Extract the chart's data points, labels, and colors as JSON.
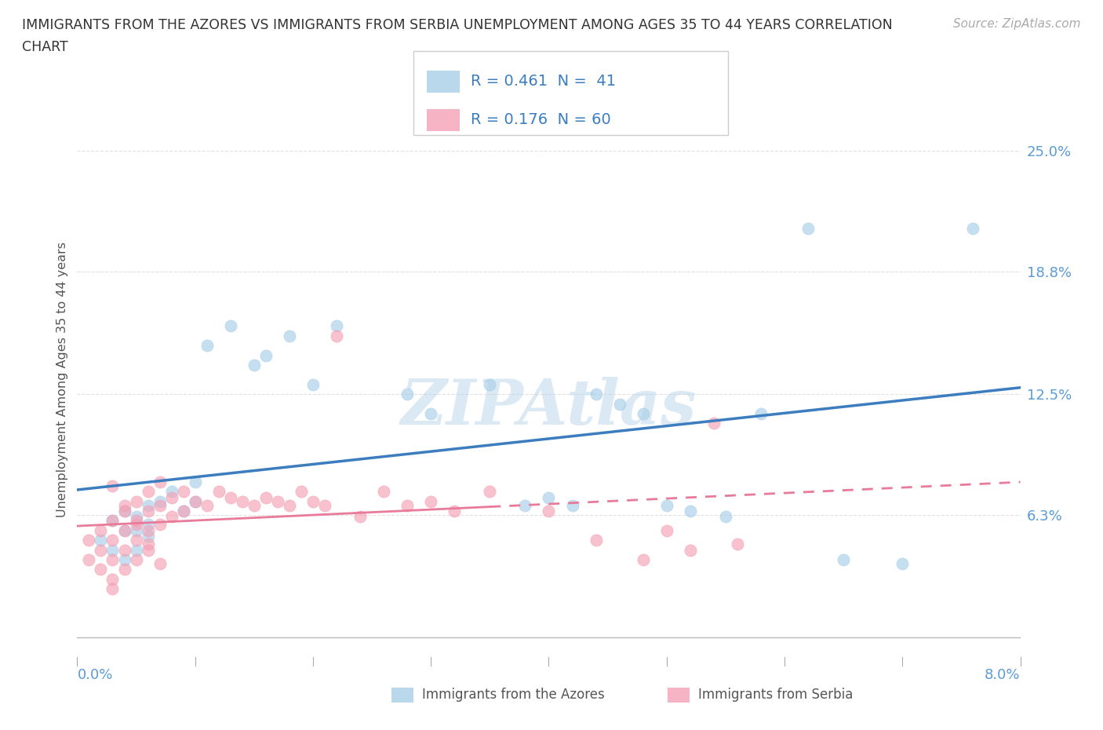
{
  "title_line1": "IMMIGRANTS FROM THE AZORES VS IMMIGRANTS FROM SERBIA UNEMPLOYMENT AMONG AGES 35 TO 44 YEARS CORRELATION",
  "title_line2": "CHART",
  "source": "Source: ZipAtlas.com",
  "xlim": [
    0.0,
    0.08
  ],
  "ylim": [
    -0.01,
    0.275
  ],
  "yticks": [
    0.0,
    0.063,
    0.125,
    0.188,
    0.25
  ],
  "ytick_labels": [
    "",
    "6.3%",
    "12.5%",
    "18.8%",
    "25.0%"
  ],
  "xtick_left_label": "0.0%",
  "xtick_right_label": "8.0%",
  "r_azores": 0.461,
  "n_azores": 41,
  "r_serbia": 0.176,
  "n_serbia": 60,
  "color_azores": "#a8cfe8",
  "color_serbia": "#f4a0b5",
  "color_azores_line": "#3b7dbf",
  "color_serbia_line": "#e87a9a",
  "legend_label_azores": "Immigrants from the Azores",
  "legend_label_serbia": "Immigrants from Serbia",
  "legend_r_azores": "R = 0.461  N =  41",
  "legend_r_serbia": "R = 0.176  N = 60",
  "watermark": "ZIPAtlas",
  "ylabel": "Unemployment Among Ages 35 to 44 years",
  "background_color": "#ffffff",
  "grid_color": "#e0e0e0",
  "title_fontsize": 12.5,
  "tick_label_fontsize": 13,
  "source_fontsize": 11,
  "azores_x": [
    0.002,
    0.003,
    0.003,
    0.004,
    0.004,
    0.004,
    0.005,
    0.005,
    0.005,
    0.006,
    0.006,
    0.006,
    0.007,
    0.008,
    0.009,
    0.01,
    0.01,
    0.011,
    0.013,
    0.015,
    0.016,
    0.018,
    0.02,
    0.022,
    0.028,
    0.03,
    0.035,
    0.038,
    0.04,
    0.042,
    0.044,
    0.046,
    0.048,
    0.05,
    0.052,
    0.055,
    0.058,
    0.062,
    0.065,
    0.07,
    0.076
  ],
  "azores_y": [
    0.05,
    0.06,
    0.045,
    0.055,
    0.065,
    0.04,
    0.062,
    0.055,
    0.045,
    0.068,
    0.058,
    0.052,
    0.07,
    0.075,
    0.065,
    0.08,
    0.07,
    0.15,
    0.16,
    0.14,
    0.145,
    0.155,
    0.13,
    0.16,
    0.125,
    0.115,
    0.13,
    0.068,
    0.072,
    0.068,
    0.125,
    0.12,
    0.115,
    0.068,
    0.065,
    0.062,
    0.115,
    0.21,
    0.04,
    0.038,
    0.21
  ],
  "serbia_x": [
    0.001,
    0.001,
    0.002,
    0.002,
    0.002,
    0.003,
    0.003,
    0.003,
    0.003,
    0.003,
    0.004,
    0.004,
    0.004,
    0.004,
    0.005,
    0.005,
    0.005,
    0.005,
    0.006,
    0.006,
    0.006,
    0.006,
    0.007,
    0.007,
    0.007,
    0.008,
    0.008,
    0.009,
    0.009,
    0.01,
    0.011,
    0.012,
    0.013,
    0.014,
    0.015,
    0.016,
    0.017,
    0.018,
    0.019,
    0.02,
    0.021,
    0.022,
    0.024,
    0.026,
    0.028,
    0.03,
    0.032,
    0.035,
    0.04,
    0.044,
    0.048,
    0.05,
    0.052,
    0.054,
    0.056,
    0.003,
    0.004,
    0.005,
    0.006,
    0.007
  ],
  "serbia_y": [
    0.05,
    0.04,
    0.055,
    0.045,
    0.035,
    0.06,
    0.05,
    0.04,
    0.03,
    0.025,
    0.065,
    0.055,
    0.045,
    0.035,
    0.07,
    0.06,
    0.05,
    0.04,
    0.075,
    0.065,
    0.055,
    0.045,
    0.08,
    0.068,
    0.058,
    0.072,
    0.062,
    0.075,
    0.065,
    0.07,
    0.068,
    0.075,
    0.072,
    0.07,
    0.068,
    0.072,
    0.07,
    0.068,
    0.075,
    0.07,
    0.068,
    0.155,
    0.062,
    0.075,
    0.068,
    0.07,
    0.065,
    0.075,
    0.065,
    0.05,
    0.04,
    0.055,
    0.045,
    0.11,
    0.048,
    0.078,
    0.068,
    0.058,
    0.048,
    0.038
  ]
}
